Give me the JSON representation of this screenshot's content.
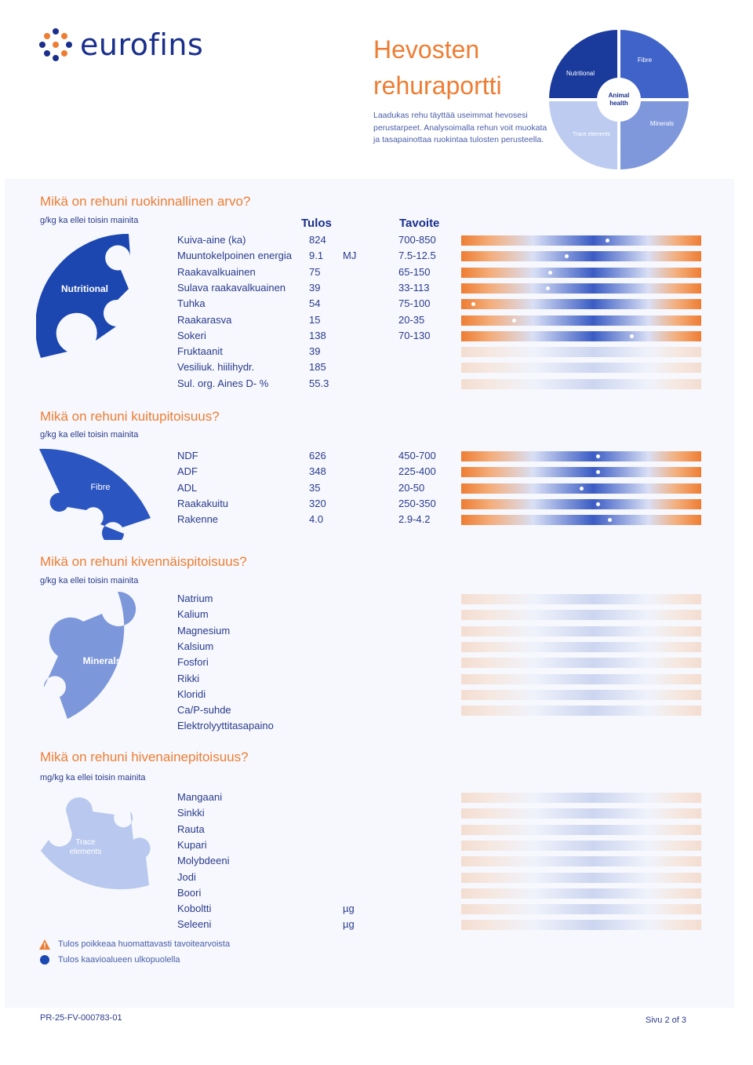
{
  "header": {
    "logo_text": "eurofins",
    "title_line1": "Hevosten",
    "title_line2": "rehuraportti",
    "intro": "Laadukas rehu täyttää useimmat hevosesi perustarpeet. Analysoimalla rehun voit muokata ja tasapainottaa ruokintaa tulosten perusteella.",
    "wheel": {
      "nutritional": "Nutritional",
      "fibre": "Fibre",
      "minerals": "Minerals",
      "trace": "Trace elements",
      "center": "Animal health"
    }
  },
  "columns": {
    "result": "Tulos",
    "target": "Tavoite"
  },
  "sections": {
    "nutritional": {
      "title": "Mikä on rehuni ruokinnallinen arvo?",
      "unit": "g/kg ka ellei toisin mainita",
      "puzzle_label": "Nutritional",
      "rows": [
        {
          "label": "Kuiva-aine (ka)",
          "value": "824",
          "unit": "",
          "target": "700-850",
          "marker": 0.61
        },
        {
          "label": "Muuntokelpoinen energia",
          "value": "9.1",
          "unit": "MJ",
          "target": "7.5-12.5",
          "marker": 0.44
        },
        {
          "label": "Raakavalkuainen",
          "value": "75",
          "unit": "",
          "target": "65-150",
          "marker": 0.37
        },
        {
          "label": "Sulava raakavalkuainen",
          "value": "39",
          "unit": "",
          "target": "33-113",
          "marker": 0.36
        },
        {
          "label": "Tuhka",
          "value": "54",
          "unit": "",
          "target": "75-100",
          "marker": 0.05
        },
        {
          "label": "Raakarasva",
          "value": "15",
          "unit": "",
          "target": "20-35",
          "marker": 0.22
        },
        {
          "label": "Sokeri",
          "value": "138",
          "unit": "",
          "target": "70-130",
          "marker": 0.71
        },
        {
          "label": "Fruktaanit",
          "value": "39",
          "unit": "",
          "target": "",
          "marker": null
        },
        {
          "label": "Vesiliuk. hiilihydr.",
          "value": "185",
          "unit": "",
          "target": "",
          "marker": null
        },
        {
          "label": "Sul. org. Aines D- %",
          "value": "55.3",
          "unit": "",
          "target": "",
          "marker": null
        }
      ]
    },
    "fibre": {
      "title": "Mikä on rehuni kuitupitoisuus?",
      "unit": "g/kg ka ellei toisin mainita",
      "puzzle_label": "Fibre",
      "rows": [
        {
          "label": "NDF",
          "value": "626",
          "unit": "",
          "target": "450-700",
          "marker": 0.57
        },
        {
          "label": "ADF",
          "value": "348",
          "unit": "",
          "target": "225-400",
          "marker": 0.57
        },
        {
          "label": "ADL",
          "value": "35",
          "unit": "",
          "target": "20-50",
          "marker": 0.5
        },
        {
          "label": "Raakakuitu",
          "value": "320",
          "unit": "",
          "target": "250-350",
          "marker": 0.57
        },
        {
          "label": "Rakenne",
          "value": "4.0",
          "unit": "",
          "target": "2.9-4.2",
          "marker": 0.62
        }
      ]
    },
    "minerals": {
      "title": "Mikä on rehuni kivennäispitoisuus?",
      "unit": "g/kg ka ellei toisin mainita",
      "puzzle_label": "Minerals",
      "rows": [
        {
          "label": "Natrium",
          "value": "",
          "unit": "",
          "target": "",
          "marker": null
        },
        {
          "label": "Kalium",
          "value": "",
          "unit": "",
          "target": "",
          "marker": null
        },
        {
          "label": "Magnesium",
          "value": "",
          "unit": "",
          "target": "",
          "marker": null
        },
        {
          "label": "Kalsium",
          "value": "",
          "unit": "",
          "target": "",
          "marker": null
        },
        {
          "label": "Fosfori",
          "value": "",
          "unit": "",
          "target": "",
          "marker": null
        },
        {
          "label": "Rikki",
          "value": "",
          "unit": "",
          "target": "",
          "marker": null
        },
        {
          "label": "Kloridi",
          "value": "",
          "unit": "",
          "target": "",
          "marker": null
        },
        {
          "label": "Ca/P-suhde",
          "value": "",
          "unit": "",
          "target": "",
          "marker": null
        },
        {
          "label": "Elektrolyyttitasapaino",
          "value": "",
          "unit": "",
          "target": "",
          "marker": null,
          "nobar": true
        }
      ]
    },
    "trace": {
      "title": "Mikä on rehuni hivenainepitoisuus?",
      "unit": "mg/kg ka ellei toisin mainita",
      "puzzle_label": "Trace elements",
      "rows": [
        {
          "label": "Mangaani",
          "value": "",
          "unit": "",
          "target": "",
          "marker": null
        },
        {
          "label": "Sinkki",
          "value": "",
          "unit": "",
          "target": "",
          "marker": null
        },
        {
          "label": "Rauta",
          "value": "",
          "unit": "",
          "target": "",
          "marker": null
        },
        {
          "label": "Kupari",
          "value": "",
          "unit": "",
          "target": "",
          "marker": null
        },
        {
          "label": "Molybdeeni",
          "value": "",
          "unit": "",
          "target": "",
          "marker": null
        },
        {
          "label": "Jodi",
          "value": "",
          "unit": "",
          "target": "",
          "marker": null
        },
        {
          "label": "Boori",
          "value": "",
          "unit": "",
          "target": "",
          "marker": null
        },
        {
          "label": "Koboltti",
          "value": "",
          "unit": "µg",
          "target": "",
          "marker": null
        },
        {
          "label": "Seleeni",
          "value": "",
          "unit": "µg",
          "target": "",
          "marker": null
        }
      ]
    }
  },
  "legend": {
    "warning": "Tulos poikkeaa huomattavasti tavoitearvoista",
    "outside": "Tulos kaavioalueen ulkopuolella"
  },
  "footer": {
    "report_id": "PR-25-FV-000783-01",
    "page": "Sivu 2 of 3"
  },
  "colors": {
    "orange": "#ee7d33",
    "navy": "#1a2f8c",
    "blue": "#2b4fb8",
    "mid": "#6a86d4",
    "light": "#a9bbe8",
    "pale": "#c9d5f1"
  }
}
